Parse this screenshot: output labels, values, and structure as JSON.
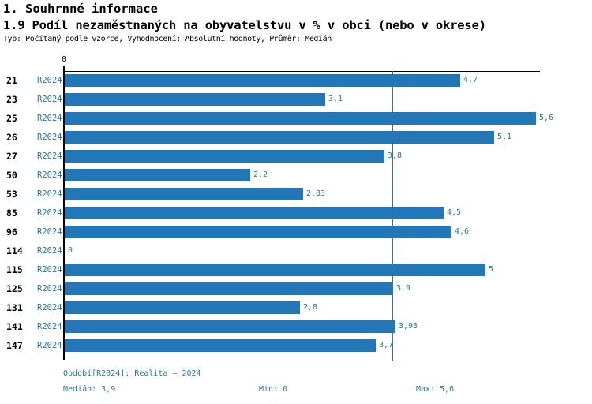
{
  "header": {
    "section_title": "1. Souhrnné informace",
    "chart_title": "1.9 Podíl nezaměstnaných na obyvatelstvu v % v obci (nebo v okrese)",
    "meta": "Typ: Počítaný podle vzorce, Vyhodnocení: Absolutní hodnoty, Průměr: Medián"
  },
  "chart_data": {
    "type": "bar",
    "orientation": "horizontal",
    "title": "1.9 Podíl nezaměstnaných na obyvatelstvu v % v obci (nebo v okrese)",
    "categories": [
      "21",
      "23",
      "25",
      "26",
      "27",
      "50",
      "53",
      "85",
      "96",
      "114",
      "115",
      "125",
      "131",
      "141",
      "147"
    ],
    "series_label": "R2024",
    "values": [
      4.7,
      3.1,
      5.6,
      5.1,
      3.8,
      2.2,
      2.83,
      4.5,
      4.6,
      0,
      5,
      3.9,
      2.8,
      3.93,
      3.7
    ],
    "value_labels": [
      "4,7",
      "3,1",
      "5,6",
      "5,1",
      "3,8",
      "2,2",
      "2,83",
      "4,5",
      "4,6",
      "0",
      "5",
      "3,9",
      "2,8",
      "3,93",
      "3,7"
    ],
    "xlim": [
      0,
      5.65
    ],
    "zero_tick_label": "0",
    "median_line_value": 3.9,
    "grid": "single-median-line",
    "legend_position": "none",
    "bar_color": "#2377b6"
  },
  "footer": {
    "period": "Období[R2024]: Realita – 2024",
    "median": "Medián: 3,9",
    "min": "Min: 0",
    "max": "Max: 5,6"
  },
  "colors": {
    "bar": "#2377b6",
    "accent_text": "#2377b6",
    "axis": "#000000",
    "background": "#ffffff"
  }
}
